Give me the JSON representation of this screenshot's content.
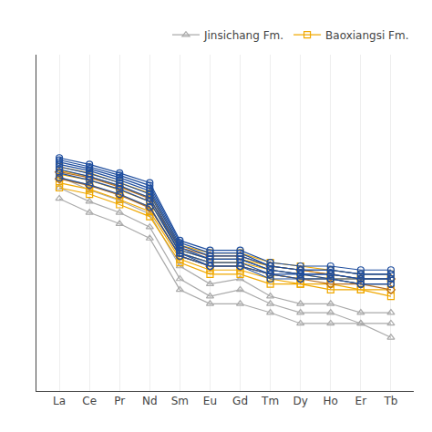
{
  "chart_data": {
    "type": "line",
    "categories": [
      "La",
      "Ce",
      "Pr",
      "Nd",
      "Sm",
      "Eu",
      "Gd",
      "Tm",
      "Dy",
      "Ho",
      "Er",
      "Tb"
    ],
    "log": "y",
    "ylim": [
      1,
      1000
    ],
    "yticks": [],
    "tick_labels": "x",
    "grid": "x",
    "legend": "upper right",
    "series": [
      {
        "name": "Jinsichang Fm.",
        "color": "#aaaaaa",
        "marker": "triangle-up",
        "values": [
          82,
          62,
          50,
          38,
          13,
          9,
          10,
          7,
          6,
          6,
          5,
          5
        ]
      },
      {
        "name": "Jinsichang Fm.",
        "color": "#aaaaaa",
        "marker": "triangle-up",
        "values": [
          65,
          49,
          39,
          29,
          10,
          7,
          8,
          6,
          5,
          5,
          4,
          4
        ]
      },
      {
        "name": "Jinsichang Fm.",
        "color": "#aaaaaa",
        "marker": "triangle-up",
        "values": [
          52,
          39,
          31,
          23,
          8,
          6,
          6,
          5,
          4,
          4,
          4,
          3
        ]
      },
      {
        "name": "Baoxiangsi Fm.",
        "color": "#f0a800",
        "marker": "square",
        "values": [
          100,
          88,
          72,
          58,
          20,
          17,
          17,
          14,
          13,
          12,
          11,
          11
        ]
      },
      {
        "name": "Baoxiangsi Fm.",
        "color": "#f0a800",
        "marker": "square",
        "values": [
          93,
          82,
          67,
          53,
          18,
          15,
          15,
          13,
          12,
          11,
          10,
          10
        ]
      },
      {
        "name": "Baoxiangsi Fm.",
        "color": "#f0a800",
        "marker": "square",
        "values": [
          86,
          76,
          62,
          49,
          17,
          14,
          14,
          12,
          11,
          10,
          10,
          10
        ]
      },
      {
        "name": "Baoxiangsi Fm.",
        "color": "#f0a800",
        "marker": "square",
        "values": [
          79,
          69,
          56,
          44,
          16,
          13,
          13,
          11,
          10,
          10,
          9,
          9
        ]
      },
      {
        "name": "Baoxiangsi Fm.",
        "color": "#f0a800",
        "marker": "square",
        "values": [
          72,
          63,
          51,
          40,
          15,
          12,
          12,
          10,
          9,
          9,
          8,
          8
        ]
      },
      {
        "name": "Baoxiangsi Fm.",
        "color": "#f0a800",
        "marker": "square",
        "values": [
          65,
          57,
          46,
          36,
          14,
          11,
          11,
          9,
          9,
          8,
          8,
          7
        ]
      },
      {
        "color": "#b87020",
        "marker": "diamond",
        "values": [
          90,
          80,
          66,
          52,
          19,
          16,
          16,
          13,
          12,
          11,
          10,
          10
        ]
      },
      {
        "color": "#b87020",
        "marker": "diamond",
        "values": [
          78,
          68,
          56,
          43,
          16,
          13,
          13,
          11,
          10,
          9,
          9,
          8
        ]
      },
      {
        "color": "#1f4e9e",
        "marker": "circle",
        "values": [
          120,
          105,
          88,
          72,
          22,
          18,
          18,
          14,
          13,
          13,
          12,
          12
        ]
      },
      {
        "color": "#1f4e9e",
        "marker": "circle",
        "values": [
          115,
          100,
          84,
          68,
          21,
          17,
          17,
          13,
          12,
          12,
          11,
          11
        ]
      },
      {
        "color": "#1f4e9e",
        "marker": "circle",
        "values": [
          110,
          96,
          80,
          64,
          20,
          16,
          16,
          13,
          12,
          12,
          11,
          11
        ]
      },
      {
        "color": "#1f4e9e",
        "marker": "circle",
        "values": [
          105,
          92,
          76,
          61,
          19,
          15,
          15,
          12,
          11,
          11,
          10,
          10
        ]
      },
      {
        "color": "#1f4e9e",
        "marker": "circle",
        "values": [
          100,
          87,
          72,
          57,
          18,
          15,
          15,
          12,
          11,
          11,
          10,
          10
        ]
      },
      {
        "color": "#1f4e9e",
        "marker": "circle",
        "values": [
          95,
          82,
          68,
          53,
          17,
          14,
          14,
          11,
          11,
          10,
          10,
          10
        ]
      },
      {
        "color": "#1f4e9e",
        "marker": "circle",
        "values": [
          88,
          76,
          63,
          49,
          17,
          13,
          13,
          11,
          10,
          10,
          9,
          9
        ]
      },
      {
        "color": "#1f4e9e",
        "marker": "circle",
        "values": [
          80,
          69,
          57,
          44,
          16,
          13,
          13,
          10,
          10,
          10,
          9,
          9
        ]
      }
    ]
  }
}
